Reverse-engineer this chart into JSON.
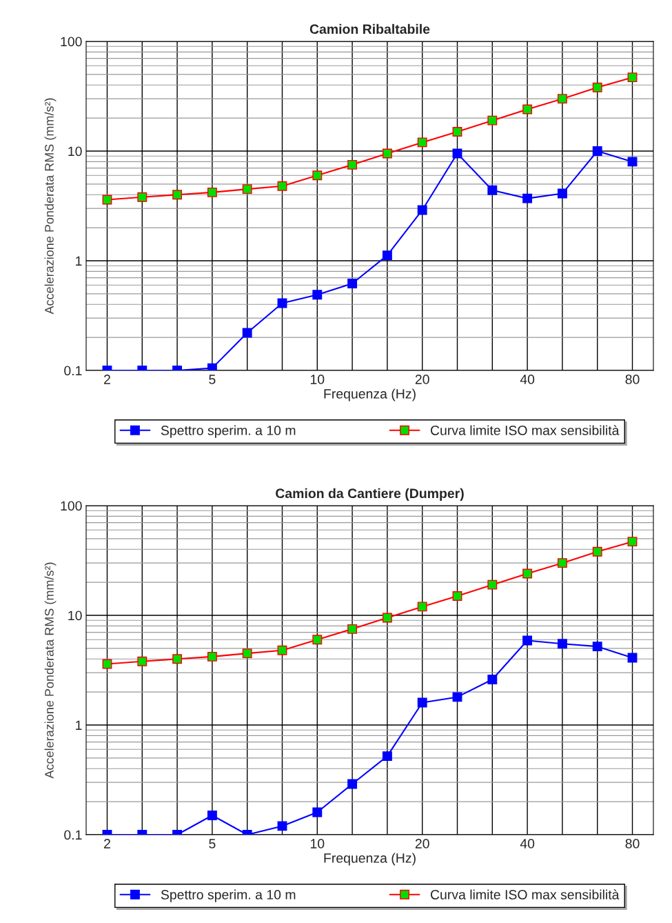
{
  "chart_data": [
    {
      "type": "line",
      "title": "Camion Ribaltabile",
      "xlabel": "Frequenza (Hz)",
      "ylabel": "Accelerazione Ponderata RMS (mm/s²)",
      "categories": [
        "2",
        null,
        null,
        "5",
        null,
        null,
        "10",
        null,
        null,
        "20",
        null,
        null,
        "40",
        null,
        null,
        "80"
      ],
      "series": [
        {
          "name": "Spettro sperim. a 10 m",
          "color": "#0000ff",
          "values": [
            0.1,
            0.1,
            0.1,
            0.105,
            0.22,
            0.41,
            0.49,
            0.62,
            1.12,
            2.9,
            9.5,
            4.4,
            3.7,
            4.1,
            10,
            8.0
          ]
        },
        {
          "name": "Curva limite ISO max sensibilità",
          "color": "#ff0000",
          "values": [
            3.6,
            3.8,
            4.0,
            4.2,
            4.5,
            4.8,
            6.0,
            7.5,
            9.5,
            12,
            15,
            19,
            24,
            30,
            38,
            47
          ]
        }
      ],
      "log": "y",
      "ylim": [
        0.1,
        100
      ],
      "yticks": [
        0.1,
        1,
        10,
        100
      ],
      "grid": true,
      "legend": "bottom",
      "marker": "square",
      "line_style": "solid"
    },
    {
      "type": "line",
      "title": "Camion da Cantiere (Dumper)",
      "xlabel": "Frequenza (Hz)",
      "ylabel": "Accelerazione Ponderata RMS (mm/s²)",
      "categories": [
        "2",
        null,
        null,
        "5",
        null,
        null,
        "10",
        null,
        null,
        "20",
        null,
        null,
        "40",
        null,
        null,
        "80"
      ],
      "series": [
        {
          "name": "Spettro sperim. a 10 m",
          "color": "#0000ff",
          "values": [
            0.1,
            0.1,
            0.1,
            0.15,
            0.1,
            0.12,
            0.16,
            0.29,
            0.52,
            1.6,
            1.8,
            2.6,
            5.9,
            5.5,
            5.2,
            4.1
          ]
        },
        {
          "name": "Curva limite ISO max sensibilità",
          "color": "#ff0000",
          "values": [
            3.6,
            3.8,
            4.0,
            4.2,
            4.5,
            4.8,
            6.0,
            7.5,
            9.5,
            12,
            15,
            19,
            24,
            30,
            38,
            47
          ]
        }
      ],
      "log": "y",
      "ylim": [
        0.1,
        100
      ],
      "yticks": [
        0.1,
        1,
        10,
        100
      ],
      "grid": true,
      "legend": "bottom",
      "marker": "square",
      "line_style": "solid"
    }
  ]
}
